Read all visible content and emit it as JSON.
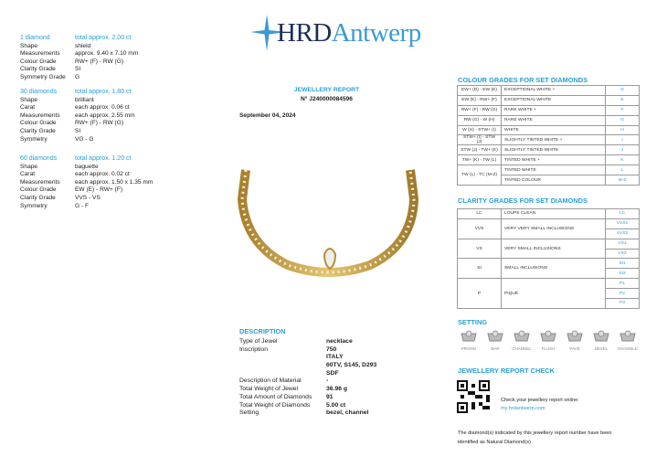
{
  "logo": {
    "part1": "HRD",
    "part2": "Antwerp"
  },
  "report": {
    "title": "JEWELLERY REPORT",
    "number": "N° J240000084596",
    "date": "September 04, 2024"
  },
  "diamond_groups": [
    {
      "heading": "1 diamond",
      "total": "total approx. 2.00 ct",
      "rows": [
        [
          "Shape",
          "shield"
        ],
        [
          "Measurements",
          "approx. 9.40 x 7.10 mm"
        ],
        [
          "Colour Grade",
          "RW+ (F) - RW (G)"
        ],
        [
          "Clarity Grade",
          "SI"
        ],
        [
          "Symmetry Grade",
          "G"
        ]
      ]
    },
    {
      "heading": "30 diamonds",
      "total": "total approx. 1.80 ct",
      "rows": [
        [
          "Shape",
          "brilliant"
        ],
        [
          "Carat",
          "each approx. 0.06 ct"
        ],
        [
          "Measurements",
          "each approx. 2.55 mm"
        ],
        [
          "Colour Grade",
          "RW+ (F) - RW (G)"
        ],
        [
          "Clarity Grade",
          "SI"
        ],
        [
          "Symmetry",
          "VG - G"
        ]
      ]
    },
    {
      "heading": "60 diamonds",
      "total": "total approx. 1.20 ct",
      "rows": [
        [
          "Shape",
          "baguette"
        ],
        [
          "Carat",
          "each approx. 0.02 ct"
        ],
        [
          "Measurements",
          "each approx. 1.50 x 1.35 mm"
        ],
        [
          "Colour Grade",
          "EW (E) - RW+ (F)"
        ],
        [
          "Clarity Grade",
          "VVS - VS"
        ],
        [
          "Symmetry",
          "G - F"
        ]
      ]
    }
  ],
  "description": {
    "title": "DESCRIPTION",
    "rows": [
      {
        "label": "Type of Jewel",
        "value": "necklace"
      },
      {
        "label": "Inscription",
        "value": "750"
      },
      {
        "label": "",
        "value": "ITALY"
      },
      {
        "label": "",
        "value": "60TV, S145, D293"
      },
      {
        "label": "",
        "value": "SDF"
      },
      {
        "label": "Description of Material",
        "value": "-"
      },
      {
        "label": "Total Weight of Jewel",
        "value": "36.96 g"
      },
      {
        "label": "Total Amount of Diamonds",
        "value": "91"
      },
      {
        "label": "Total Weight of Diamonds",
        "value": "5.00 ct"
      },
      {
        "label": "Setting",
        "value": "bezel, channel"
      }
    ]
  },
  "colour_grades": {
    "title": "COLOUR GRADES FOR SET DIAMONDS",
    "ranges": [
      "EW+ (D) - EW (E)",
      "EW (E) - RW+ (F)",
      "RW+ (F) - RW (G)",
      "RW (G) - W (H)",
      "W (H) - STW+ (I)",
      "STW+ (I) - STW (J)",
      "STW (J) - TW+ (K)",
      "TW+ (K) - TW (L)",
      "TW (L) - TC (M-Z)"
    ],
    "names": [
      "EXCEPTIONAL WHITE +",
      "EXCEPTIONAL WHITE",
      "RARE WHITE +",
      "RARE WHITE",
      "WHITE",
      "SLIGHTLY TINTED WHITE +",
      "SLIGHTLY TINTED WHITE",
      "TINTED WHITE +",
      "TINTED WHITE",
      "TINTED COLOUR"
    ],
    "grades": [
      "D",
      "E",
      "F",
      "G",
      "H",
      "I",
      "J",
      "K",
      "L",
      "M-Z"
    ]
  },
  "clarity_grades": {
    "title": "CLARITY GRADES FOR SET DIAMONDS",
    "groups": [
      {
        "code": "LC",
        "name": "LOUPE CLEAN",
        "grades": [
          "LC"
        ]
      },
      {
        "code": "VVS",
        "name": "VERY VERY SMALL INCLUSIONS",
        "grades": [
          "VVS1",
          "VVS2"
        ]
      },
      {
        "code": "VS",
        "name": "VERY SMALL INCLUSIONS",
        "grades": [
          "VS1",
          "VS2"
        ]
      },
      {
        "code": "SI",
        "name": "SMALL INCLUSIONS",
        "grades": [
          "SI1",
          "SI2"
        ]
      },
      {
        "code": "P",
        "name": "PIQUÉ",
        "grades": [
          "P1",
          "P2",
          "P3"
        ]
      }
    ]
  },
  "setting": {
    "title": "SETTING",
    "types": [
      "PRONG",
      "BAR",
      "CHANNEL",
      "FLUSH",
      "PAVÉ",
      "BEZEL",
      "INVISIBLE"
    ]
  },
  "report_check": {
    "title": "JEWELLERY REPORT CHECK",
    "text": "Check your jewellery report online:",
    "link": "my.hrdantwerp.com"
  },
  "footer": {
    "line1": "The diamond(s) indicated by this jewellery report number have been",
    "line2": "identified as Natural Diamond(s)"
  },
  "colors": {
    "accent": "#2a9fd8",
    "logo_dark": "#1c2d55",
    "gold": "#c9a14a"
  }
}
